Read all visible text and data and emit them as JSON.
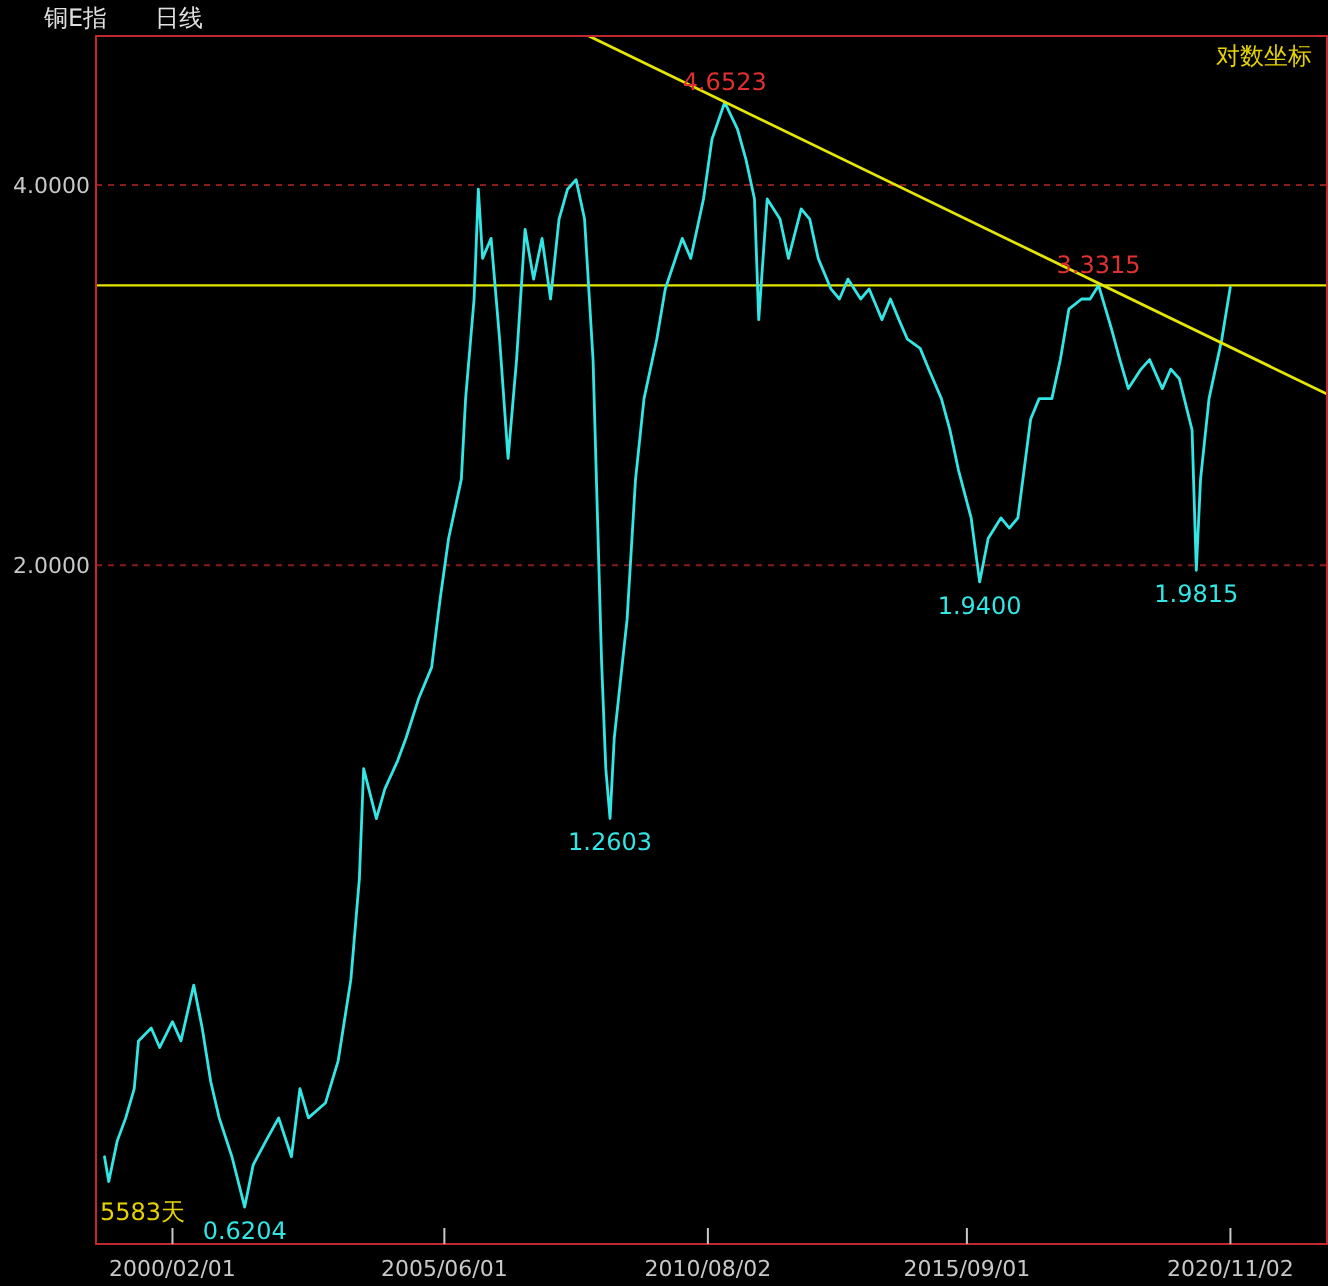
{
  "chart_data": {
    "type": "line",
    "title": "铜E指",
    "subtitle": "日线",
    "x": [
      "1998-10",
      "1998-11",
      "1999-01",
      "1999-03",
      "1999-05",
      "1999-06",
      "1999-09",
      "1999-11",
      "2000-02",
      "2000-04",
      "2000-07",
      "2000-09",
      "2000-11",
      "2001-01",
      "2001-04",
      "2001-07",
      "2001-09",
      "2001-12",
      "2002-03",
      "2002-06",
      "2002-08",
      "2002-10",
      "2003-02",
      "2003-05",
      "2003-08",
      "2003-10",
      "2003-11",
      "2004-02",
      "2004-04",
      "2004-07",
      "2004-09",
      "2004-12",
      "2005-03",
      "2005-05",
      "2005-07",
      "2005-10",
      "2005-11",
      "2006-01",
      "2006-02",
      "2006-03",
      "2006-05",
      "2006-07",
      "2006-09",
      "2006-11",
      "2007-01",
      "2007-03",
      "2007-05",
      "2007-07",
      "2007-09",
      "2007-11",
      "2008-01",
      "2008-03",
      "2008-05",
      "2008-07",
      "2008-08",
      "2008-09",
      "2008-10",
      "2009-01",
      "2009-03",
      "2009-05",
      "2009-08",
      "2009-10",
      "2010-02",
      "2010-04",
      "2010-07",
      "2010-09",
      "2010-12",
      "2011-03",
      "2011-05",
      "2011-07",
      "2011-08",
      "2011-10",
      "2012-01",
      "2012-03",
      "2012-06",
      "2012-08",
      "2012-10",
      "2013-01",
      "2013-03",
      "2013-05",
      "2013-08",
      "2013-10",
      "2014-01",
      "2014-03",
      "2014-05",
      "2014-07",
      "2014-10",
      "2014-12",
      "2015-03",
      "2015-05",
      "2015-07",
      "2015-10",
      "2015-12",
      "2016-02",
      "2016-05",
      "2016-07",
      "2016-09",
      "2016-12",
      "2017-02",
      "2017-05",
      "2017-07",
      "2017-09",
      "2017-12",
      "2018-02",
      "2018-04",
      "2018-07",
      "2018-09",
      "2018-11",
      "2019-02",
      "2019-04",
      "2019-07",
      "2019-09",
      "2019-11",
      "2020-02",
      "2020-03",
      "2020-04",
      "2020-06",
      "2020-09",
      "2020-11"
    ],
    "series": [
      {
        "color": "#33e6e6",
        "values": [
          0.68,
          0.65,
          0.7,
          0.73,
          0.77,
          0.84,
          0.86,
          0.83,
          0.87,
          0.84,
          0.93,
          0.86,
          0.78,
          0.73,
          0.68,
          0.6204,
          0.67,
          0.7,
          0.73,
          0.68,
          0.77,
          0.73,
          0.75,
          0.81,
          0.94,
          1.13,
          1.38,
          1.26,
          1.33,
          1.4,
          1.46,
          1.57,
          1.66,
          1.88,
          2.1,
          2.34,
          2.71,
          3.25,
          3.97,
          3.5,
          3.63,
          3.02,
          2.43,
          2.91,
          3.69,
          3.37,
          3.63,
          3.25,
          3.76,
          3.97,
          4.04,
          3.76,
          2.91,
          1.68,
          1.38,
          1.2603,
          1.46,
          1.81,
          2.34,
          2.71,
          3.02,
          3.31,
          3.63,
          3.5,
          3.9,
          4.35,
          4.6523,
          4.43,
          4.19,
          3.9,
          3.13,
          3.9,
          3.76,
          3.5,
          3.83,
          3.76,
          3.5,
          3.31,
          3.25,
          3.37,
          3.25,
          3.31,
          3.13,
          3.25,
          3.13,
          3.02,
          2.97,
          2.86,
          2.71,
          2.56,
          2.38,
          2.18,
          1.94,
          2.1,
          2.18,
          2.14,
          2.18,
          2.61,
          2.71,
          2.71,
          2.91,
          3.19,
          3.25,
          3.25,
          3.3315,
          3.08,
          2.91,
          2.76,
          2.86,
          2.91,
          2.76,
          2.86,
          2.81,
          2.56,
          1.9815,
          2.34,
          2.71,
          3.02,
          3.32
        ]
      },
      {
        "type": "line",
        "color": "#e6e600",
        "x": [
          "2008-04",
          "2022-10"
        ],
        "values": [
          5.25,
          2.73
        ]
      }
    ],
    "xlim": [
      "1998-08",
      "2022-10"
    ],
    "xticks": [
      {
        "value": "2000-02-01",
        "label": "2000/02/01"
      },
      {
        "value": "2005-06-01",
        "label": "2005/06/01"
      },
      {
        "value": "2010-08-02",
        "label": "2010/08/02"
      },
      {
        "value": "2015-09-01",
        "label": "2015/09/01"
      },
      {
        "value": "2020-11-02",
        "label": "2020/11/02"
      }
    ],
    "ylim": [
      0.58,
      5.25
    ],
    "yticks": [
      {
        "value": 2,
        "label": "2.0000"
      },
      {
        "value": 4,
        "label": "4.0000"
      }
    ],
    "log": "y",
    "grid": "y",
    "ref_lines": [
      {
        "axis": "y",
        "value": 3.3315,
        "color": "#e6e600"
      }
    ],
    "annotations": [
      {
        "text": "4.6523",
        "x": "2010-12",
        "y": 4.6523
      },
      {
        "text": "3.3315",
        "x": "2018-04",
        "y": 3.3315
      },
      {
        "text": "1.2603",
        "x": "2008-09",
        "y": 1.2603
      },
      {
        "text": "1.9400",
        "x": "2015-12",
        "y": 1.94
      },
      {
        "text": "1.9815",
        "x": "2020-03",
        "y": 1.9815
      },
      {
        "text": "0.6204",
        "x": "2001-07",
        "y": 0.6204
      },
      "5583天",
      "对数坐标"
    ]
  }
}
